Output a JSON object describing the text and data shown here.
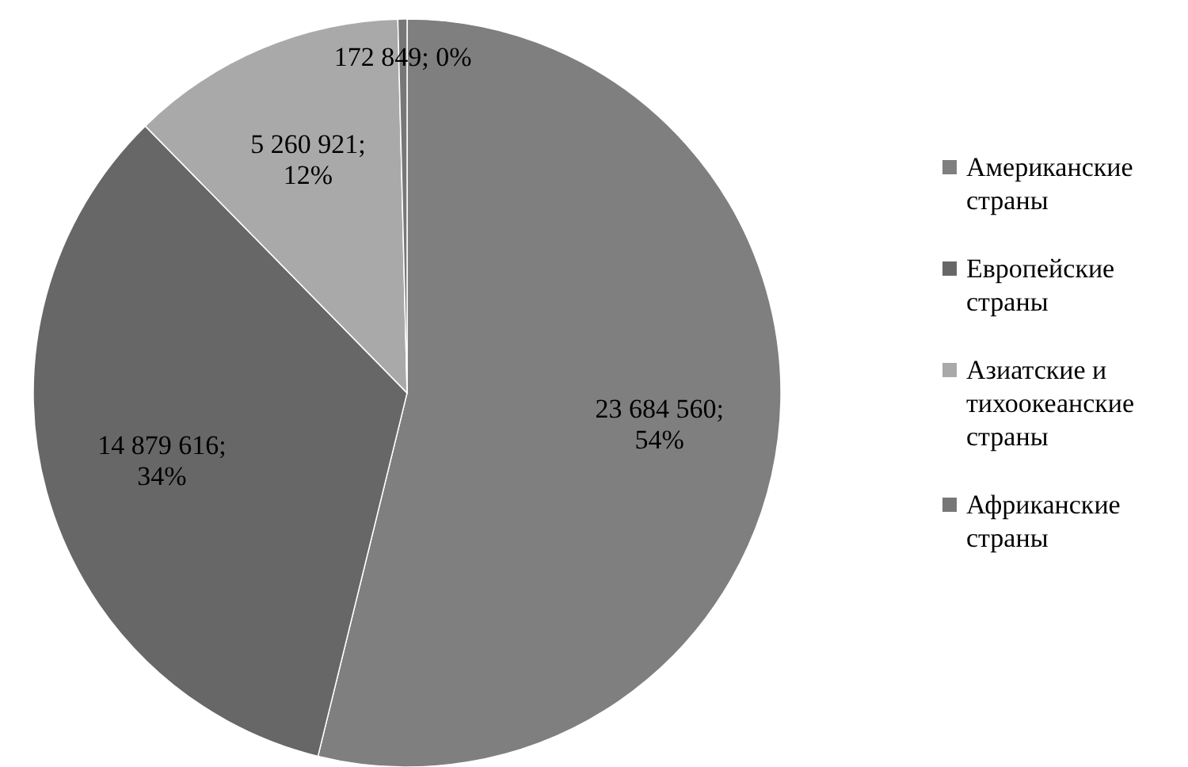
{
  "chart_data": {
    "type": "pie",
    "categories": [
      "Американские страны",
      "Европейские страны",
      "Азиатские и тихоокеанские страны",
      "Африканские страны"
    ],
    "values": [
      23684560,
      14879616,
      5260921,
      172849
    ],
    "colors": [
      "#7f7f7f",
      "#676767",
      "#a9a9a9",
      "#777777"
    ],
    "value_labels": [
      "23 684 560; 54%",
      "14 879 616; 34%",
      "5 260 921; 12%",
      "172 849; 0%"
    ],
    "legend": "right"
  }
}
